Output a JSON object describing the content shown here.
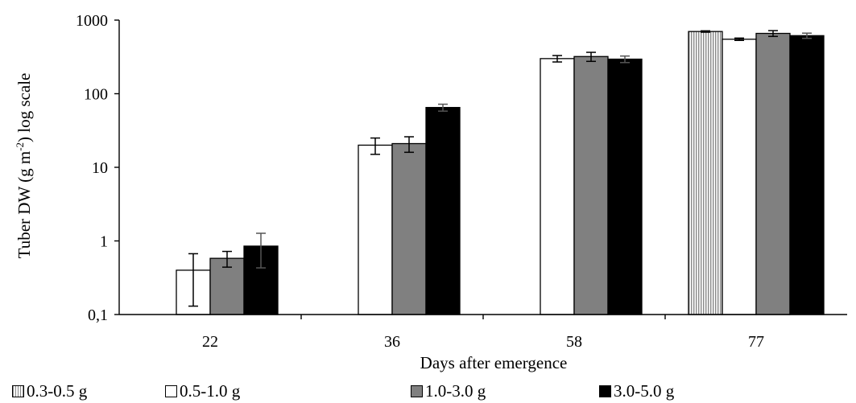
{
  "chart_data": {
    "type": "bar",
    "title": "",
    "xlabel": "Days after emergence",
    "ylabel": "Tuber DW (g m⁻²) log scale",
    "ylabel_parts": {
      "main": "Tuber DW (g m",
      "sup": "-2",
      "tail": ") log scale"
    },
    "yscale": "log",
    "ylim": [
      0.1,
      1000
    ],
    "yticks": [
      {
        "value": 0.1,
        "label": "0,1"
      },
      {
        "value": 1,
        "label": "1"
      },
      {
        "value": 10,
        "label": "10"
      },
      {
        "value": 100,
        "label": "100"
      },
      {
        "value": 1000,
        "label": "1000"
      }
    ],
    "categories": [
      "22",
      "36",
      "58",
      "77"
    ],
    "series": [
      {
        "name": "0.3-0.5 g",
        "fill": "#c8c8c8",
        "pattern": "vertical-lines",
        "values": [
          null,
          null,
          null,
          700
        ],
        "errors": [
          null,
          null,
          null,
          15
        ]
      },
      {
        "name": "0.5-1.0 g",
        "fill": "#ffffff",
        "values": [
          0.4,
          20,
          300,
          550
        ],
        "errors": [
          0.27,
          5,
          30,
          20
        ]
      },
      {
        "name": "1.0-3.0 g",
        "fill": "#808080",
        "values": [
          0.58,
          21,
          320,
          660
        ],
        "errors": [
          0.14,
          5,
          45,
          60
        ]
      },
      {
        "name": "3.0-5.0 g",
        "fill": "#000000",
        "values": [
          0.85,
          65,
          295,
          615
        ],
        "errors": [
          0.42,
          7,
          30,
          50
        ]
      }
    ],
    "legend_position": "bottom",
    "grid": false
  }
}
